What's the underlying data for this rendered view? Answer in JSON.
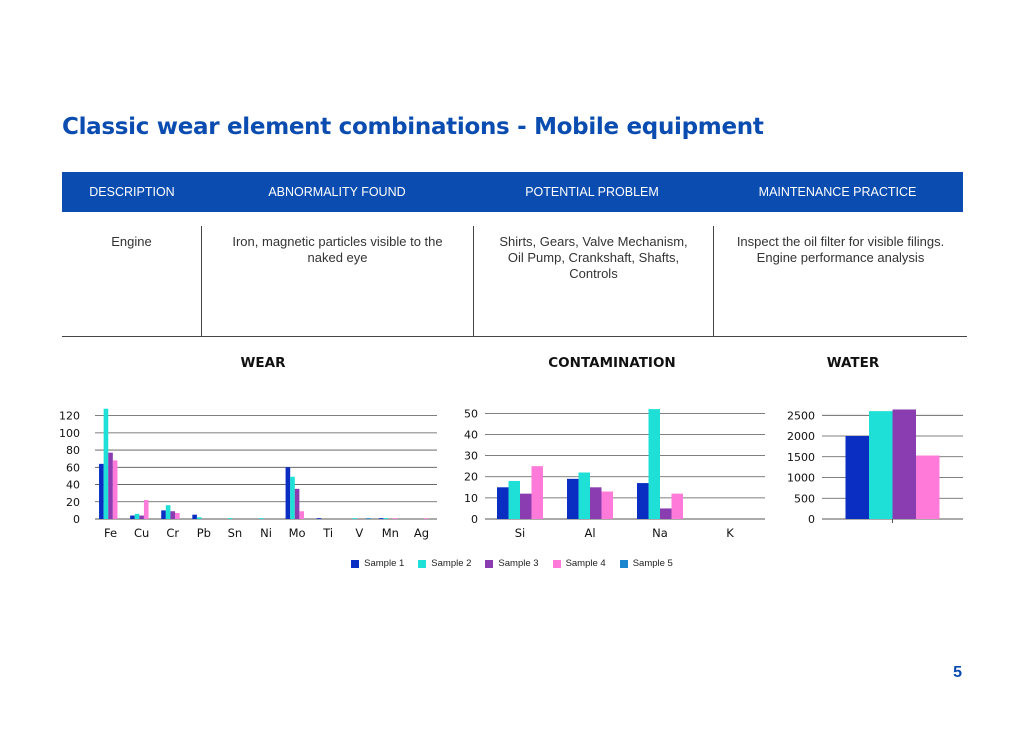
{
  "title": "Classic wear element combinations - Mobile equipment",
  "table": {
    "headers": [
      "DESCRIPTION",
      "ABNORMALITY FOUND",
      "POTENTIAL PROBLEM",
      "MAINTENANCE PRACTICE"
    ],
    "row": [
      "Engine",
      "Iron, magnetic particles visible to the naked eye",
      "Shirts, Gears, Valve Mechanism, Oil Pump, Crankshaft, Shafts, Controls",
      "Inspect the oil filter for visible filings. Engine performance analysis"
    ]
  },
  "colors": {
    "title": "#0a4cb0",
    "header_bg": "#0a4cb0",
    "sample1": "#0a2ec2",
    "sample2": "#1ee0d6",
    "sample3": "#8a3db0",
    "sample4": "#ff7ad9",
    "sample5": "#1a86d0"
  },
  "legend": [
    "Sample 1",
    "Sample 2",
    "Sample 3",
    "Sample 4",
    "Sample 5"
  ],
  "page_number": "5",
  "chart_data": [
    {
      "id": "wear",
      "type": "bar",
      "title": "WEAR",
      "categories": [
        "Fe",
        "Cu",
        "Cr",
        "Pb",
        "Sn",
        "Ni",
        "Mo",
        "Ti",
        "V",
        "Mn",
        "Ag"
      ],
      "ylim": [
        0,
        130
      ],
      "yticks": [
        0,
        20,
        40,
        60,
        80,
        100,
        120
      ],
      "series": [
        {
          "name": "Sample 1",
          "values": [
            64,
            4,
            10,
            5,
            0,
            0,
            60,
            1,
            0,
            1,
            0
          ]
        },
        {
          "name": "Sample 2",
          "values": [
            128,
            6,
            16,
            2,
            1,
            1,
            49,
            0,
            1,
            1,
            0
          ]
        },
        {
          "name": "Sample 3",
          "values": [
            77,
            4,
            9,
            0,
            0,
            0,
            35,
            0,
            0,
            0,
            0
          ]
        },
        {
          "name": "Sample 4",
          "values": [
            68,
            22,
            7,
            0,
            0,
            0,
            9,
            0,
            0,
            1,
            1
          ]
        },
        {
          "name": "Sample 5",
          "values": [
            0,
            0,
            0,
            0,
            0,
            0,
            0,
            0,
            1,
            0,
            0
          ]
        }
      ]
    },
    {
      "id": "contamination",
      "type": "bar",
      "title": "CONTAMINATION",
      "categories": [
        "Si",
        "Al",
        "Na",
        "K"
      ],
      "ylim": [
        0,
        53
      ],
      "yticks": [
        0,
        10,
        20,
        30,
        40,
        50
      ],
      "series": [
        {
          "name": "Sample 1",
          "values": [
            15,
            19,
            17,
            0
          ]
        },
        {
          "name": "Sample 2",
          "values": [
            18,
            22,
            52,
            0
          ]
        },
        {
          "name": "Sample 3",
          "values": [
            12,
            15,
            5,
            0
          ]
        },
        {
          "name": "Sample 4",
          "values": [
            25,
            13,
            12,
            0
          ]
        }
      ]
    },
    {
      "id": "water",
      "type": "bar",
      "title": "WATER",
      "categories": [
        ""
      ],
      "ylim": [
        0,
        2700
      ],
      "yticks": [
        0,
        500,
        1000,
        1500,
        2000,
        2500
      ],
      "series": [
        {
          "name": "Sample 1",
          "values": [
            2000
          ]
        },
        {
          "name": "Sample 2",
          "values": [
            2600
          ]
        },
        {
          "name": "Sample 3",
          "values": [
            2640
          ]
        },
        {
          "name": "Sample 4",
          "values": [
            1530
          ]
        }
      ]
    }
  ]
}
